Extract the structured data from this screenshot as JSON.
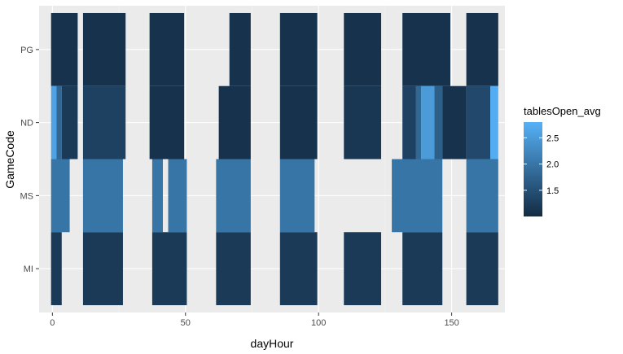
{
  "chart_data": {
    "type": "heatmap",
    "xlabel": "dayHour",
    "ylabel": "GameCode",
    "xlim": [
      -5,
      170
    ],
    "x_ticks": [
      0,
      50,
      100,
      150
    ],
    "x_tick_labels": [
      "0",
      "50",
      "100",
      "150"
    ],
    "categories": [
      "PG",
      "ND",
      "MS",
      "MI"
    ],
    "legend": {
      "title": "tablesOpen_avg",
      "ticks": [
        1.5,
        2.0,
        2.5
      ],
      "tick_labels": [
        "1.5",
        "2.0",
        "2.5"
      ],
      "min": 1.0,
      "max": 2.8,
      "color_low": "#132B43",
      "color_high": "#56B1F7",
      "placement": "right"
    },
    "colors": {
      "panel_background": "#EBEBEB",
      "grid_major": "#FFFFFF",
      "grid_minor": "#F2F2F2",
      "axis_text": "#4D4D4D"
    },
    "series": [
      {
        "name": "PG",
        "segments": [
          {
            "x0": -0.5,
            "x1": 9.5,
            "value": 1.1
          },
          {
            "x0": 11.5,
            "x1": 27.5,
            "value": 1.1
          },
          {
            "x0": 36.5,
            "x1": 49.5,
            "value": 1.1
          },
          {
            "x0": 66.5,
            "x1": 74.5,
            "value": 1.1
          },
          {
            "x0": 85.5,
            "x1": 99.5,
            "value": 1.1
          },
          {
            "x0": 109.5,
            "x1": 123.5,
            "value": 1.1
          },
          {
            "x0": 131.5,
            "x1": 149.5,
            "value": 1.1
          },
          {
            "x0": 155.5,
            "x1": 167.5,
            "value": 1.1
          }
        ]
      },
      {
        "name": "ND",
        "segments": [
          {
            "x0": -0.5,
            "x1": 1.5,
            "value": 2.6
          },
          {
            "x0": 1.5,
            "x1": 3.5,
            "value": 1.8
          },
          {
            "x0": 3.5,
            "x1": 9.5,
            "value": 1.2
          },
          {
            "x0": 11.5,
            "x1": 27.5,
            "value": 1.3
          },
          {
            "x0": 36.5,
            "x1": 49.5,
            "value": 1.1
          },
          {
            "x0": 62.5,
            "x1": 74.5,
            "value": 1.1
          },
          {
            "x0": 85.5,
            "x1": 99.5,
            "value": 1.1
          },
          {
            "x0": 109.5,
            "x1": 123.5,
            "value": 1.15
          },
          {
            "x0": 131.5,
            "x1": 136.5,
            "value": 1.3
          },
          {
            "x0": 136.5,
            "x1": 138.5,
            "value": 1.8
          },
          {
            "x0": 138.5,
            "x1": 143.5,
            "value": 2.5
          },
          {
            "x0": 143.5,
            "x1": 146.5,
            "value": 1.7
          },
          {
            "x0": 146.5,
            "x1": 155.5,
            "value": 1.1
          },
          {
            "x0": 155.5,
            "x1": 164.5,
            "value": 1.4
          },
          {
            "x0": 164.5,
            "x1": 167.5,
            "value": 2.75
          }
        ]
      },
      {
        "name": "MS",
        "segments": [
          {
            "x0": -0.5,
            "x1": 6.5,
            "value": 2.0
          },
          {
            "x0": 11.5,
            "x1": 26.5,
            "value": 2.0
          },
          {
            "x0": 37.5,
            "x1": 41.5,
            "value": 2.0
          },
          {
            "x0": 43.5,
            "x1": 50.5,
            "value": 2.0
          },
          {
            "x0": 61.5,
            "x1": 74.5,
            "value": 2.0
          },
          {
            "x0": 85.5,
            "x1": 98.5,
            "value": 2.0
          },
          {
            "x0": 127.5,
            "x1": 146.5,
            "value": 2.0
          },
          {
            "x0": 155.5,
            "x1": 167.5,
            "value": 2.0
          }
        ]
      },
      {
        "name": "MI",
        "segments": [
          {
            "x0": -0.5,
            "x1": 3.5,
            "value": 1.2
          },
          {
            "x0": 11.5,
            "x1": 26.5,
            "value": 1.2
          },
          {
            "x0": 37.5,
            "x1": 50.5,
            "value": 1.2
          },
          {
            "x0": 61.5,
            "x1": 74.5,
            "value": 1.2
          },
          {
            "x0": 85.5,
            "x1": 99.5,
            "value": 1.2
          },
          {
            "x0": 109.5,
            "x1": 123.5,
            "value": 1.2
          },
          {
            "x0": 131.5,
            "x1": 146.5,
            "value": 1.2
          },
          {
            "x0": 155.5,
            "x1": 167.5,
            "value": 1.2
          }
        ]
      }
    ]
  }
}
